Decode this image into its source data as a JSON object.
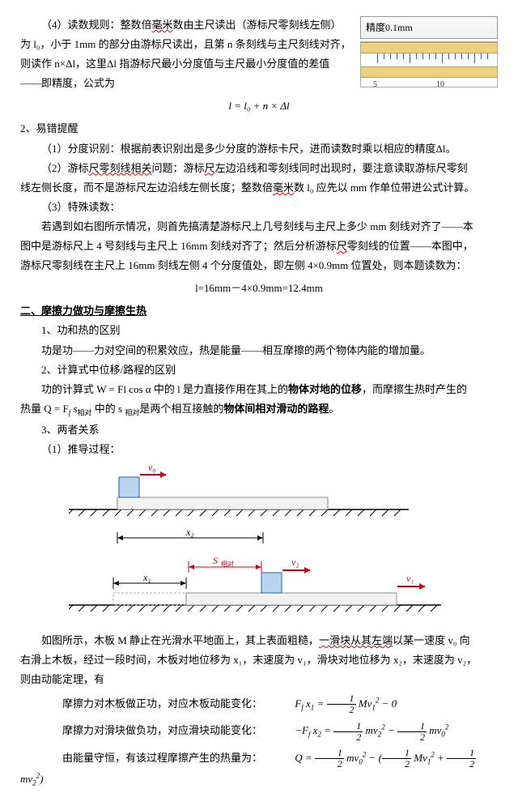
{
  "ruler": {
    "title": "精度0.1mm",
    "ticks": [
      {
        "pos": 20,
        "label": "5",
        "major": true
      },
      {
        "pos": 28,
        "major": false
      },
      {
        "pos": 36,
        "major": false
      },
      {
        "pos": 44,
        "major": false
      },
      {
        "pos": 52,
        "major": false
      },
      {
        "pos": 60,
        "major": true
      },
      {
        "pos": 68,
        "major": false
      },
      {
        "pos": 76,
        "major": false
      },
      {
        "pos": 84,
        "major": false
      },
      {
        "pos": 92,
        "major": false
      },
      {
        "pos": 100,
        "label": "10",
        "major": true
      },
      {
        "pos": 108,
        "major": false
      },
      {
        "pos": 116,
        "major": false
      },
      {
        "pos": 124,
        "major": false
      },
      {
        "pos": 132,
        "major": false
      },
      {
        "pos": 140,
        "major": true
      },
      {
        "pos": 148,
        "major": false
      },
      {
        "pos": 156,
        "major": false
      }
    ]
  },
  "para": {
    "p1a": "（4）读数规则：整数倍",
    "p1a_wavy": "毫米",
    "p1b": "数由主尺读出（游标尺零刻线左侧）",
    "p2": "为 l₀，小于 1mm 的部分由游标尺读出，且第 n 条刻线与主尺刻线对齐，",
    "p3": "则读作 n×Δl，这里Δl 指游标尺最小分度值与主尺最小分度值的差值",
    "p4": "——即精度，公式为",
    "formula1": "l = l₀ + n × Δl",
    "h1": "2、易错提醒",
    "p5": "（1）分度识别：根据前表识别出是多少分度的游标卡尺，进而读数时乘以相应的精度Δl。",
    "p6a": "（2）游标",
    "p6wavy1": "尺零刻线相关",
    "p6b": "问题：游标",
    "p6wavy2": "尺",
    "p6c": "左边沿线和零刻线同时出现时，要注意读取游标尺零刻",
    "p7a": "线左侧长度，而不是游标尺左边沿线左侧长度；整数倍",
    "p7wavy": "毫米",
    "p7b": "数 l₀ 应先以 mm 作单位带进公式计算。",
    "p8": "（3）特殊读数：",
    "p9": "若遇到如右图所示情况，则首先搞清楚游标尺上几号刻线与主尺上多少 mm 刻线对齐了——本",
    "p10a": "图中是游标尺上 4 号刻线与主尺上 16mm 刻线对齐了；然后分析游标",
    "p10wavy": "尺",
    "p10b": "零刻线的位置——本图中，",
    "p11": "游标尺零刻线在主尺上 16mm 刻线左侧 4 个分度值处，即左侧 4×0.9mm 位置处，则本题读数为：",
    "formula2": "l=16mm－4×0.9mm=12.4mm",
    "sec2": "二、摩擦力做功与摩擦生热",
    "s2_1": "1、功和热的区别",
    "s2_1t": "功是功——力对空间的积累效应，热是能量——相互摩擦的两个物体内能的增加量。",
    "s2_2": "2、计算式中位移/路程的区别",
    "s2_2t_a": "功的计算式 W = Fl cos α 中的 l 是力直接作用在其上的",
    "s2_2t_bold1": "物体对地的位移",
    "s2_2t_b": "，而摩擦生热时产生的",
    "s2_2t2_a": "热量 Q = F",
    "s2_2t2_sub": "f",
    "s2_2t2_b": " s",
    "s2_2t2_sub2": "相对",
    "s2_2t2_c": " 中的 s ",
    "s2_2t2_sub3": "相对",
    "s2_2t2_d": "是两个相互接触的",
    "s2_2t2_bold": "物体间相对滑动的路程",
    "s2_2t2_e": "。",
    "s2_3": "3、两者关系",
    "s2_3_1": "（1）推导过程：",
    "desc1a": "如图所示，木板 M 静止在光滑水平地面上，其上表面粗糙，",
    "desc1wavy": "一滑块从其左端",
    "desc1b": "以某一速度 v₀ 向",
    "desc2": "右滑上木板，经过一段时间，木板对地位移为 x₁，末速度为 v₁，滑块对地位移为 x₂，末速度为 v₂，",
    "desc3": "则由动能定理，有",
    "eq1_label": "摩擦力对木板做正功，对应木板动能变化：",
    "eq2_label": "摩擦力对滑块做负功，对应滑块动能变化：",
    "eq3_label": "由能量守恒，有该过程摩擦产生的热量为："
  },
  "diagram1": {
    "v0": "v₀",
    "x2": "x₂",
    "x1": "x₁",
    "s": "S",
    "s_sub": "相对",
    "v2": "v₂",
    "v1": "v₁",
    "colors": {
      "block": "#b8d4f0",
      "block_border": "#2860a8",
      "board": "#f2f2f2",
      "board_border": "#888",
      "ground_hatch": "#333",
      "arrow_red": "#d00020",
      "measure": "#000"
    }
  }
}
